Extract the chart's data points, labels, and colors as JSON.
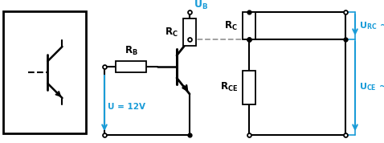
{
  "bg_color": "#ffffff",
  "line_color": "#000000",
  "blue_color": "#1a9cd8",
  "gray_dashed_color": "#999999",
  "fig_width": 4.78,
  "fig_height": 1.78,
  "dpi": 100
}
